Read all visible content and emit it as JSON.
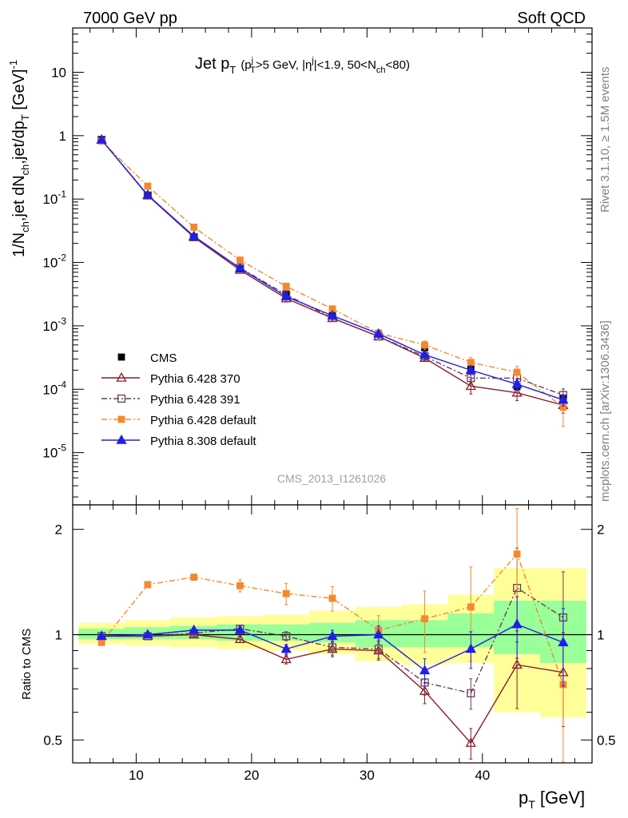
{
  "header": {
    "left": "7000 GeV pp",
    "right": "Soft QCD"
  },
  "side_labels": {
    "rivet": "Rivet 3.1.10, ≥ 1.5M events",
    "mcplots": "mcplots.cern.ch [arXiv:1306.3436]"
  },
  "plot_title": {
    "main": "Jet p",
    "main_sub": "T",
    "cut_text": "(p",
    "cut_sup": "j",
    "cut_sub": "T",
    "cut_rest1": ">5 GeV, |η",
    "cut_sup2": "j",
    "cut_rest2": "|<1.9, 50<N",
    "cut_sub2": "ch",
    "cut_rest3": "<80)"
  },
  "watermark": "CMS_2013_I1261026",
  "axes": {
    "ylabel_main": "1/N",
    "ylabel_sub1": "ch",
    "ylabel_mid": ",jet dN",
    "ylabel_sub2": "ch",
    "ylabel_mid2": ",jet/dp",
    "ylabel_sub3": "T",
    "ylabel_end": " [GeV]",
    "ylabel_sup": "-1",
    "ratio_ylabel": "Ratio to CMS",
    "xlabel": "p",
    "xlabel_sub": "T",
    "xlabel_unit": " [GeV]"
  },
  "legend": [
    {
      "label": "CMS",
      "color": "#000000",
      "marker": "filled-square",
      "line": "none"
    },
    {
      "label": "Pythia 6.428 370",
      "color": "#8b1a2a",
      "marker": "open-triangle",
      "line": "solid"
    },
    {
      "label": "Pythia 6.428 391",
      "color": "#6a3d5a",
      "marker": "open-square",
      "line": "dashdot"
    },
    {
      "label": "Pythia 6.428 default",
      "color": "#f5882c",
      "marker": "filled-square",
      "line": "dashdot"
    },
    {
      "label": "Pythia 8.308 default",
      "color": "#1f1fe6",
      "marker": "filled-triangle",
      "line": "solid"
    }
  ],
  "chart_data": [
    {
      "type": "line",
      "panel": "main",
      "yscale": "log",
      "xlim": [
        4.5,
        49.5
      ],
      "ylim": [
        1.5e-06,
        50
      ],
      "xlabel": "p_T [GeV]",
      "ylabel": "1/N_ch,jet dN_ch,jet/dp_T [GeV]^-1",
      "x": [
        7,
        11,
        15,
        19,
        23,
        27,
        31,
        35,
        39,
        43,
        47
      ],
      "x_ticks": [
        10,
        20,
        30,
        40
      ],
      "y_ticks": [
        "10^-5",
        "10^-4",
        "10^-3",
        "10^-2",
        "10^-1",
        "1",
        "10"
      ],
      "y_tick_values": [
        1e-05,
        0.0001,
        0.001,
        0.01,
        0.1,
        1,
        10
      ],
      "series": [
        {
          "name": "CMS",
          "values": [
            0.87,
            0.115,
            0.025,
            0.0079,
            0.0032,
            0.00145,
            0.00075,
            0.00045,
            0.00022,
            0.00011,
            7.2e-05
          ]
        },
        {
          "name": "Pythia 6.428 370",
          "values": [
            0.86,
            0.114,
            0.025,
            0.0076,
            0.0027,
            0.00132,
            0.00068,
            0.00031,
            0.000112,
            8.8e-05,
            5.6e-05
          ],
          "err": [
            0,
            0,
            0,
            0,
            0.1,
            0.07,
            0.06,
            0.1,
            0.25,
            0.25,
            0.25
          ]
        },
        {
          "name": "Pythia 6.428 391",
          "values": [
            0.86,
            0.114,
            0.025,
            0.0082,
            0.0031,
            0.00133,
            0.00068,
            0.00033,
            0.00015,
            0.00015,
            8.1e-05
          ],
          "err": [
            0,
            0,
            0,
            0,
            0.08,
            0.07,
            0.06,
            0.1,
            0.2,
            0.25,
            0.25
          ]
        },
        {
          "name": "Pythia 6.428 default",
          "values": [
            0.82,
            0.16,
            0.036,
            0.0109,
            0.0042,
            0.00185,
            0.00077,
            0.0005,
            0.000265,
            0.000185,
            5.2e-05
          ],
          "err": [
            0,
            0,
            0,
            0.05,
            0.07,
            0.07,
            0.07,
            0.15,
            0.2,
            0.25,
            0.5
          ]
        },
        {
          "name": "Pythia 8.308 default",
          "values": [
            0.86,
            0.116,
            0.026,
            0.0081,
            0.0029,
            0.00145,
            0.00075,
            0.00035,
            0.0002,
            0.00012,
            6.8e-05
          ],
          "err": [
            0,
            0,
            0,
            0,
            0.05,
            0.05,
            0.05,
            0.08,
            0.12,
            0.2,
            0.2
          ]
        }
      ]
    },
    {
      "type": "line",
      "panel": "ratio",
      "yscale": "log",
      "xlim": [
        4.5,
        49.5
      ],
      "ylim": [
        0.43,
        2.35
      ],
      "ylabel": "Ratio to CMS",
      "x_ticks": [
        10,
        20,
        30,
        40
      ],
      "y_ticks": [
        "0.5",
        "1",
        "2"
      ],
      "y_tick_values": [
        0.5,
        1,
        2
      ],
      "bands": {
        "edges": [
          5,
          9,
          13,
          17,
          21,
          25,
          29,
          33,
          37,
          41,
          45,
          49
        ],
        "green": [
          [
            0.97,
            1.04
          ],
          [
            0.97,
            1.05
          ],
          [
            0.97,
            1.06
          ],
          [
            0.96,
            1.07
          ],
          [
            0.96,
            1.07
          ],
          [
            0.95,
            1.08
          ],
          [
            0.92,
            1.1
          ],
          [
            0.92,
            1.1
          ],
          [
            0.92,
            1.15
          ],
          [
            0.88,
            1.25
          ],
          [
            0.83,
            1.25
          ]
        ],
        "yellow": [
          [
            0.94,
            1.08
          ],
          [
            0.93,
            1.1
          ],
          [
            0.92,
            1.12
          ],
          [
            0.91,
            1.13
          ],
          [
            0.9,
            1.14
          ],
          [
            0.88,
            1.17
          ],
          [
            0.84,
            1.2
          ],
          [
            0.82,
            1.22
          ],
          [
            0.83,
            1.3
          ],
          [
            0.6,
            1.55
          ],
          [
            0.58,
            1.55
          ]
        ]
      },
      "x": [
        7,
        11,
        15,
        19,
        23,
        27,
        31,
        35,
        39,
        43,
        47
      ],
      "series": [
        {
          "name": "Pythia 6.428 370",
          "values": [
            0.99,
            0.99,
            1.0,
            0.97,
            0.85,
            0.91,
            0.9,
            0.69,
            0.49,
            0.82,
            0.78
          ],
          "err": [
            0.01,
            0.01,
            0.01,
            0.02,
            0.03,
            0.05,
            0.06,
            0.08,
            0.1,
            0.25,
            0.3
          ]
        },
        {
          "name": "Pythia 6.428 391",
          "values": [
            0.99,
            0.99,
            1.01,
            1.04,
            0.99,
            0.92,
            0.91,
            0.73,
            0.68,
            1.36,
            1.12
          ],
          "err": [
            0.01,
            0.01,
            0.01,
            0.02,
            0.03,
            0.05,
            0.06,
            0.08,
            0.1,
            0.3,
            0.35
          ]
        },
        {
          "name": "Pythia 6.428 default",
          "values": [
            0.95,
            1.39,
            1.46,
            1.38,
            1.31,
            1.27,
            1.03,
            1.11,
            1.2,
            1.7,
            0.72
          ],
          "err": [
            0.01,
            0.02,
            0.02,
            0.04,
            0.07,
            0.08,
            0.1,
            0.2,
            0.3,
            0.35,
            0.4
          ]
        },
        {
          "name": "Pythia 8.308 default",
          "values": [
            0.99,
            1.0,
            1.03,
            1.03,
            0.91,
            0.99,
            1.0,
            0.79,
            0.91,
            1.07,
            0.95
          ],
          "err": [
            0.01,
            0.01,
            0.01,
            0.02,
            0.03,
            0.04,
            0.06,
            0.08,
            0.12,
            0.2,
            0.25
          ]
        }
      ]
    }
  ]
}
